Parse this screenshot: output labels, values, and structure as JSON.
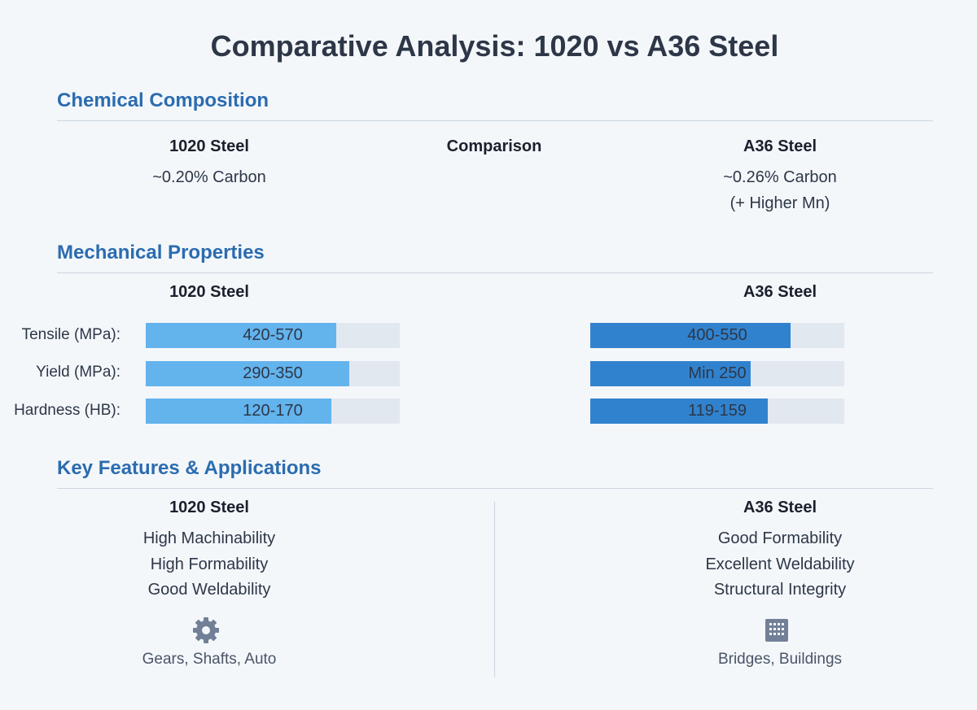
{
  "title": "Comparative Analysis: 1020 vs A36 Steel",
  "chemical": {
    "heading": "Chemical Composition",
    "left_head": "1020 Steel",
    "mid_head": "Comparison",
    "right_head": "A36 Steel",
    "left_lines": [
      "~0.20% Carbon"
    ],
    "right_lines": [
      "~0.26% Carbon",
      "(+ Higher Mn)"
    ]
  },
  "mechanical": {
    "heading": "Mechanical Properties",
    "left_head": "1020 Steel",
    "right_head": "A36 Steel",
    "rows": [
      {
        "label": "Tensile (MPa):",
        "left_text": "420-570",
        "left_fill": 0.75,
        "right_text": "400-550",
        "right_fill": 0.79
      },
      {
        "label": "Yield (MPa):",
        "left_text": "290-350",
        "left_fill": 0.8,
        "right_text": "Min 250",
        "right_fill": 0.63
      },
      {
        "label": "Hardness (HB):",
        "left_text": "120-170",
        "left_fill": 0.73,
        "right_text": "119-159",
        "right_fill": 0.7
      }
    ],
    "colors": {
      "steel_1020": "#63b3ed",
      "steel_a36": "#3182ce",
      "track": "#e2e8f0"
    }
  },
  "features": {
    "heading": "Key Features & Applications",
    "left_head": "1020 Steel",
    "right_head": "A36 Steel",
    "left_items": [
      "High Machinability",
      "High Formability",
      "Good Weldability"
    ],
    "right_items": [
      "Good Formability",
      "Excellent Weldability",
      "Structural Integrity"
    ],
    "left_icon": "gear-icon",
    "right_icon": "building-icon",
    "left_apps": "Gears, Shafts, Auto",
    "right_apps": "Bridges, Buildings"
  }
}
